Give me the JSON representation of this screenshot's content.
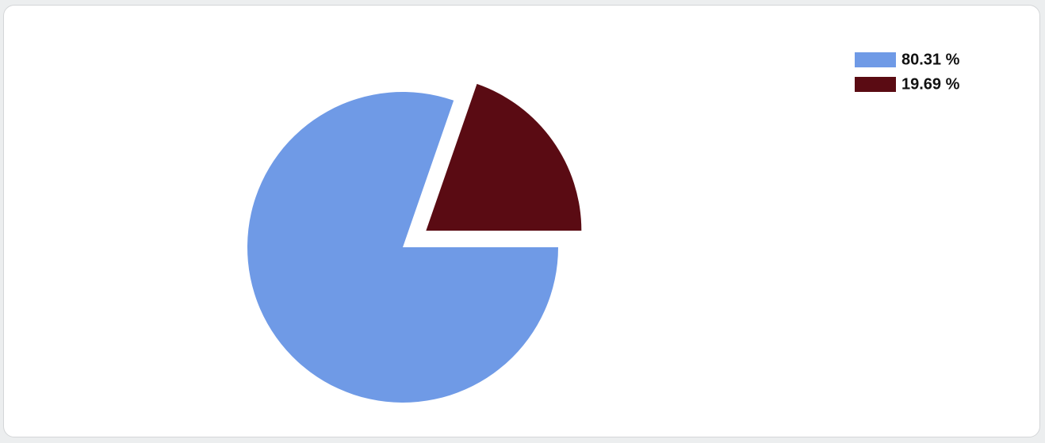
{
  "chart_data": {
    "type": "pie",
    "categories": [
      "80.31 %",
      "19.69 %"
    ],
    "values": [
      80.31,
      19.69
    ],
    "colors": [
      "#6f9ae6",
      "#5a0b13"
    ],
    "legend": "top-right"
  }
}
